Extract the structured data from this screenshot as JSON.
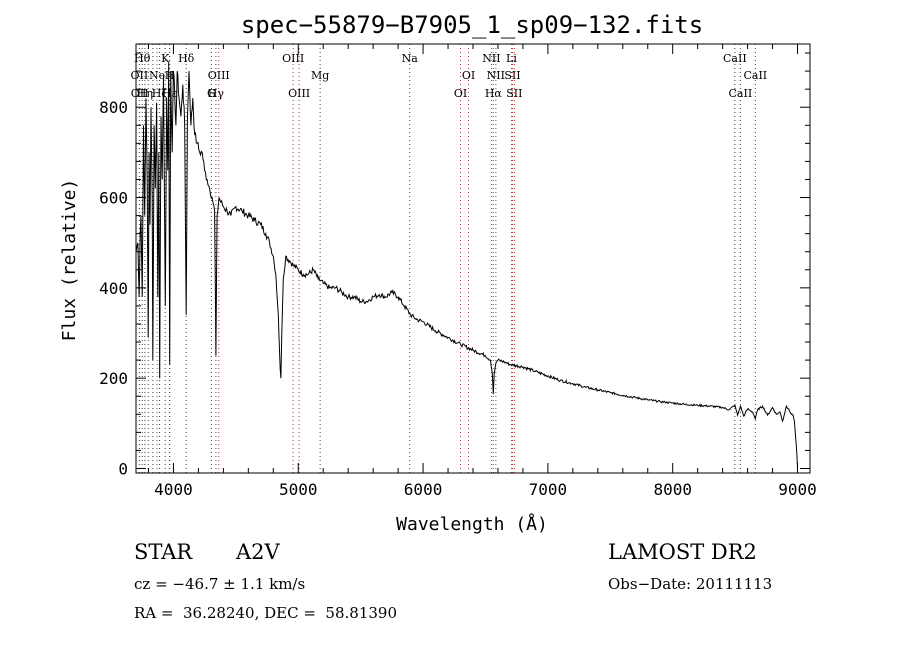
{
  "chart_data": {
    "type": "line",
    "title": "spec−55879−B7905_1_sp09−132.fits",
    "xlabel": "Wavelength (Å)",
    "ylabel": "Flux (relative)",
    "xlim": [
      3700,
      9100
    ],
    "ylim": [
      -10,
      940
    ],
    "x_ticks": [
      4000,
      5000,
      6000,
      7000,
      8000,
      9000
    ],
    "y_ticks": [
      0,
      200,
      400,
      600,
      800
    ],
    "grid": false,
    "series": [
      {
        "x": [
          3700,
          3715,
          3725,
          3734,
          3740,
          3750,
          3760,
          3770,
          3780,
          3790,
          3798,
          3805,
          3812,
          3820,
          3830,
          3835,
          3845,
          3855,
          3865,
          3875,
          3883,
          3890,
          3900,
          3910,
          3920,
          3935,
          3945,
          3955,
          3962,
          3970,
          3978,
          3990,
          4000,
          4010,
          4020,
          4030,
          4045,
          4060,
          4075,
          4090,
          4102,
          4112,
          4125,
          4140,
          4155,
          4170,
          4190,
          4210,
          4230,
          4250,
          4270,
          4290,
          4310,
          4330,
          4340,
          4350,
          4365,
          4380,
          4400,
          4430,
          4460,
          4500,
          4550,
          4600,
          4650,
          4700,
          4740,
          4770,
          4800,
          4820,
          4840,
          4855,
          4861,
          4868,
          4880,
          4900,
          4930,
          4960,
          5000,
          5040,
          5080,
          5120,
          5160,
          5200,
          5250,
          5300,
          5350,
          5400,
          5450,
          5500,
          5550,
          5600,
          5650,
          5700,
          5750,
          5800,
          5850,
          5900,
          5950,
          6000,
          6100,
          6200,
          6300,
          6400,
          6500,
          6540,
          6555,
          6563,
          6570,
          6585,
          6600,
          6650,
          6700,
          6800,
          6900,
          7000,
          7100,
          7200,
          7300,
          7400,
          7500,
          7600,
          7700,
          7800,
          7900,
          8000,
          8100,
          8200,
          8300,
          8400,
          8450,
          8498,
          8520,
          8542,
          8570,
          8600,
          8640,
          8662,
          8680,
          8720,
          8760,
          8800,
          8830,
          8860,
          8880,
          8895,
          8910,
          8930,
          8950,
          8965,
          8975,
          8985,
          8995,
          9000
        ],
        "values": [
          480,
          500,
          380,
          520,
          560,
          380,
          760,
          560,
          820,
          640,
          290,
          700,
          540,
          800,
          600,
          240,
          760,
          620,
          810,
          380,
          700,
          200,
          780,
          640,
          870,
          360,
          820,
          660,
          900,
          230,
          880,
          700,
          880,
          830,
          760,
          880,
          820,
          780,
          850,
          760,
          340,
          770,
          880,
          760,
          820,
          740,
          720,
          700,
          700,
          660,
          640,
          620,
          600,
          570,
          250,
          560,
          600,
          590,
          580,
          570,
          560,
          580,
          570,
          560,
          550,
          540,
          520,
          500,
          470,
          430,
          340,
          220,
          200,
          300,
          420,
          470,
          460,
          450,
          440,
          430,
          430,
          440,
          420,
          410,
          400,
          400,
          390,
          380,
          380,
          370,
          370,
          380,
          385,
          380,
          390,
          380,
          360,
          340,
          330,
          325,
          305,
          290,
          275,
          262,
          250,
          240,
          210,
          165,
          210,
          235,
          240,
          236,
          230,
          225,
          215,
          205,
          195,
          188,
          180,
          174,
          168,
          162,
          157,
          152,
          148,
          145,
          142,
          140,
          138,
          135,
          130,
          140,
          118,
          138,
          116,
          132,
          125,
          110,
          130,
          138,
          118,
          135,
          120,
          125,
          105,
          120,
          138,
          132,
          120,
          118,
          105,
          70,
          30,
          0
        ]
      }
    ],
    "lines": [
      {
        "wavelength": 3727,
        "label": "OII",
        "row": 1
      },
      {
        "wavelength": 3729,
        "label": "OII",
        "row": 2
      },
      {
        "wavelength": 3750,
        "label": "Hθ",
        "row": 0
      },
      {
        "wavelength": 3771,
        "label": "Hη",
        "row": 2
      },
      {
        "wavelength": 3798,
        "label": "",
        "row": 2
      },
      {
        "wavelength": 3835,
        "label": "",
        "row": 2
      },
      {
        "wavelength": 3869,
        "label": "Ne",
        "row": 1
      },
      {
        "wavelength": 3889,
        "label": "Hζ",
        "row": 2
      },
      {
        "wavelength": 3934,
        "label": "K",
        "row": 0
      },
      {
        "wavelength": 3969,
        "label": "H",
        "row": 1
      },
      {
        "wavelength": 3970,
        "label": "Hε",
        "row": 2
      },
      {
        "wavelength": 4102,
        "label": "Hδ",
        "row": 0
      },
      {
        "wavelength": 4340,
        "label": "Hγ",
        "row": 2
      },
      {
        "wavelength": 4304,
        "label": "G",
        "row": 2
      },
      {
        "wavelength": 4363,
        "label": "OIII",
        "row": 1
      },
      {
        "wavelength": 4959,
        "label": "OIII",
        "row": 0
      },
      {
        "wavelength": 5007,
        "label": "OIII",
        "row": 2
      },
      {
        "wavelength": 5175,
        "label": "Mg",
        "row": 1
      },
      {
        "wavelength": 5893,
        "label": "Na",
        "row": 0
      },
      {
        "wavelength": 6300,
        "label": "OI",
        "row": 2
      },
      {
        "wavelength": 6364,
        "label": "OI",
        "row": 1
      },
      {
        "wavelength": 6548,
        "label": "NII",
        "row": 0
      },
      {
        "wavelength": 6563,
        "label": "Hα",
        "row": 2
      },
      {
        "wavelength": 6583,
        "label": "NII",
        "row": 1
      },
      {
        "wavelength": 6708,
        "label": "Li",
        "row": 0
      },
      {
        "wavelength": 6716,
        "label": "SII",
        "row": 1
      },
      {
        "wavelength": 6731,
        "label": "SII",
        "row": 2
      },
      {
        "wavelength": 8498,
        "label": "CaII",
        "row": 0
      },
      {
        "wavelength": 8542,
        "label": "CaII",
        "row": 2
      },
      {
        "wavelength": 8662,
        "label": "CaII",
        "row": 1
      }
    ]
  },
  "info": {
    "class_label": "STAR",
    "subclass": "A2V",
    "survey": "LAMOST DR2",
    "velocity": "cz = −46.7 ± 1.1 km/s",
    "obs_date": "Obs−Date: 20111113",
    "coords": "RA =  36.28240, DEC =  58.81390"
  },
  "colors": {
    "axes": "#000000",
    "spectrum": "#000000",
    "emission_marker": "#c03030",
    "absorption_marker": "#404040"
  }
}
